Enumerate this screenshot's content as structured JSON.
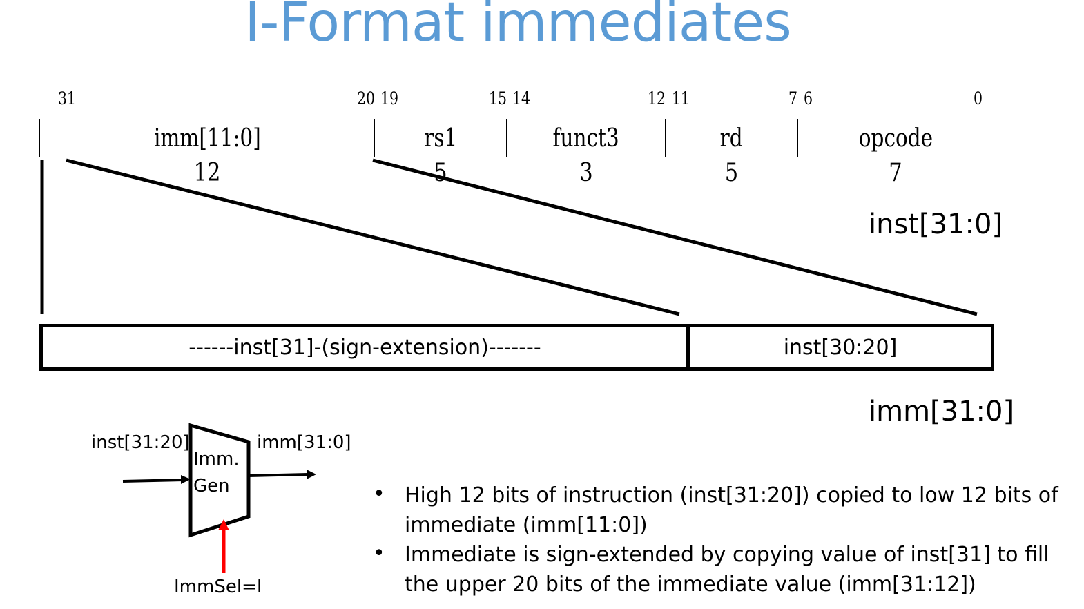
{
  "title": "I-Format immediates",
  "bit_positions": [
    "31",
    "20",
    "19",
    "15",
    "14",
    "12",
    "11",
    "7",
    "6",
    "0"
  ],
  "fields": [
    {
      "name": "imm[11:0]",
      "width": "12"
    },
    {
      "name": "rs1",
      "width": "5"
    },
    {
      "name": "funct3",
      "width": "3"
    },
    {
      "name": "rd",
      "width": "5"
    },
    {
      "name": "opcode",
      "width": "7"
    }
  ],
  "inst_label": "inst[31:0]",
  "imm_boxes": {
    "sign_ext": "------inst[31]-(sign-extension)-------",
    "low": "inst[30:20]"
  },
  "imm_label": "imm[31:0]",
  "immgen": {
    "input_label": "inst[31:20]",
    "output_label": "imm[31:0]",
    "block_line1": "Imm.",
    "block_line2": "Gen",
    "select_label": "ImmSel=I",
    "select_color": "#ff0000"
  },
  "bullets": [
    "High 12 bits of instruction (inst[31:20]) copied to low 12 bits of immediate (imm[11:0])",
    "Immediate is sign-extended by copying value of inst[31] to fill the upper 20 bits of the immediate value (imm[31:12])"
  ],
  "colors": {
    "title": "#5b9bd5"
  }
}
